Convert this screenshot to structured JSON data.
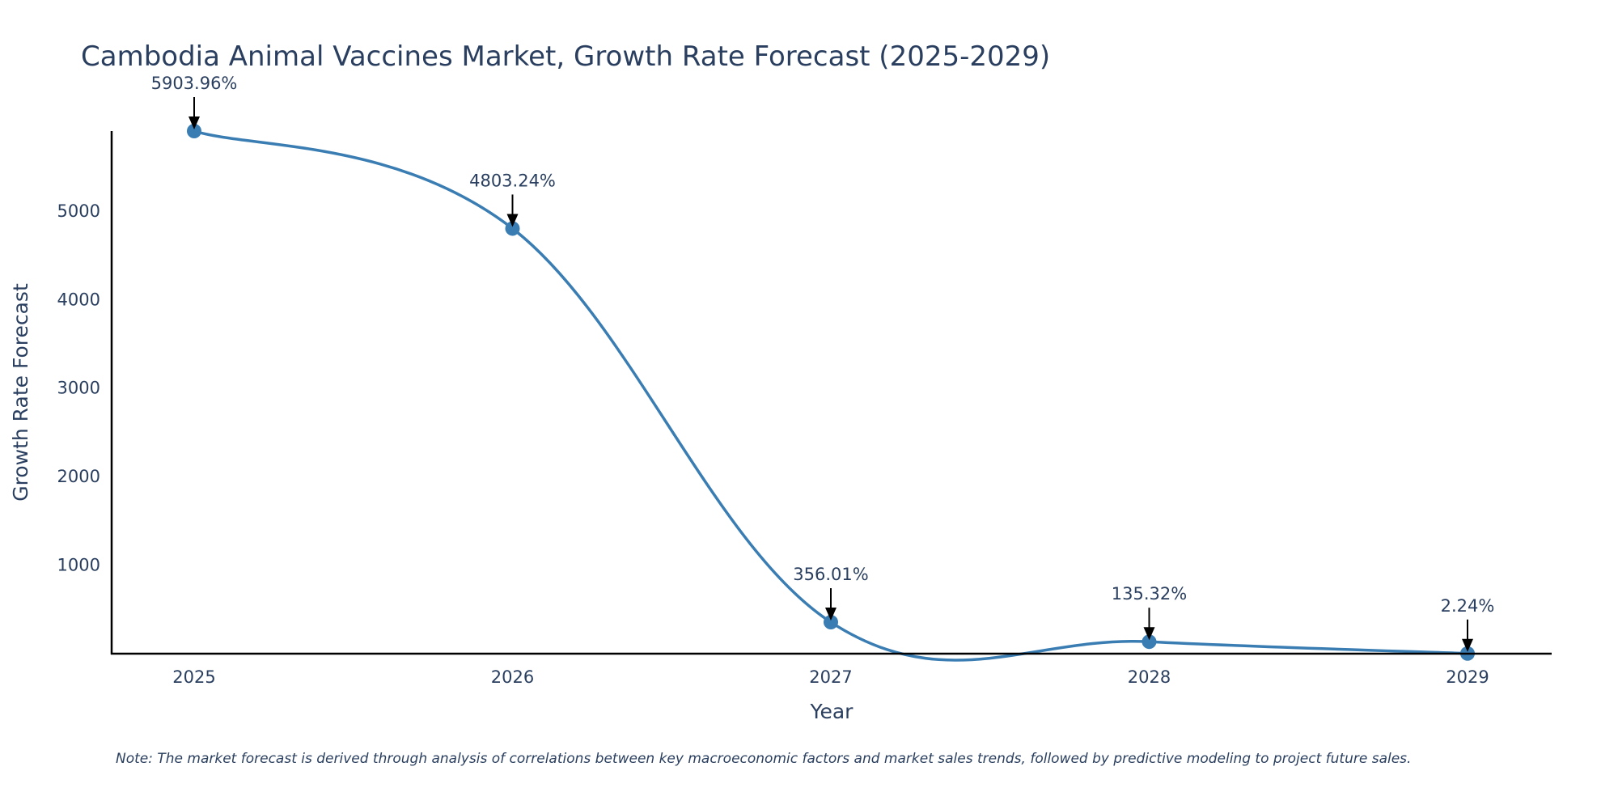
{
  "note": "Note: The market forecast is derived through analysis of correlations between key macroeconomic factors and market sales trends, followed by predictive modeling to project future sales.",
  "colors": {
    "line": "#3a7db3",
    "axis": "#000000",
    "text": "#2a3f5f",
    "arrow": "#000000"
  },
  "chart_data": {
    "type": "line",
    "title": "Cambodia Animal Vaccines Market, Growth Rate Forecast (2025-2029)",
    "xlabel": "Year",
    "ylabel": "Growth Rate Forecast",
    "categories": [
      "2025",
      "2026",
      "2027",
      "2028",
      "2029"
    ],
    "values": [
      5903.96,
      4803.24,
      356.01,
      135.32,
      2.24
    ],
    "annotations": [
      "5903.96%",
      "4803.24%",
      "356.01%",
      "135.32%",
      "2.24%"
    ],
    "yticks": [
      1000,
      2000,
      3000,
      4000,
      5000
    ],
    "ytick_labels": [
      "1000",
      "2000",
      "3000",
      "4000",
      "5000"
    ],
    "ylim": [
      0,
      5903.96
    ],
    "grid": false,
    "smoothing": "spline"
  }
}
